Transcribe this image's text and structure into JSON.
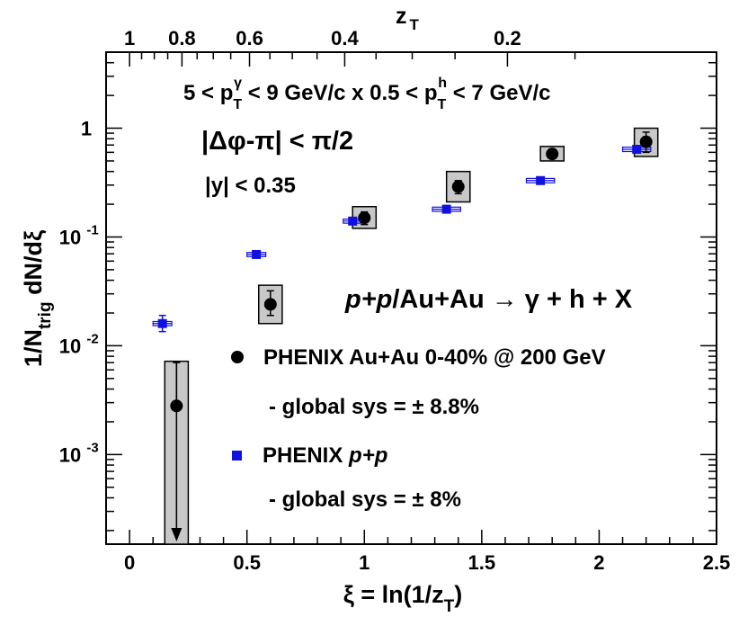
{
  "chart_data": {
    "type": "scatter",
    "title": "",
    "xlabel": "ξ = ln(1/z",
    "xlabel_sub": "T",
    "xlabel_tail": ")",
    "ylabel": "1/N",
    "ylabel_sub": "trig",
    "ylabel_tail": " dN/dξ",
    "x2label": "z",
    "x2label_sub": "T",
    "xlim": [
      -0.1,
      2.5
    ],
    "ylim": [
      0.00015,
      5
    ],
    "yscale": "log",
    "grid": false,
    "xticks": [
      {
        "value": 0,
        "label": "0"
      },
      {
        "value": 0.5,
        "label": "0.5"
      },
      {
        "value": 1,
        "label": "1"
      },
      {
        "value": 1.5,
        "label": "1.5"
      },
      {
        "value": 2,
        "label": "2"
      },
      {
        "value": 2.5,
        "label": "2.5"
      }
    ],
    "yticks": [
      {
        "value": 0.001,
        "label": "10",
        "exp": "-3"
      },
      {
        "value": 0.01,
        "label": "10",
        "exp": "-2"
      },
      {
        "value": 0.1,
        "label": "10",
        "exp": "-1"
      },
      {
        "value": 1,
        "label": "1",
        "exp": ""
      }
    ],
    "x2ticks": [
      {
        "value": 1,
        "label": "1"
      },
      {
        "value": 0.8,
        "label": "0.8"
      },
      {
        "value": 0.6,
        "label": "0.6"
      },
      {
        "value": 0.4,
        "label": "0.4"
      },
      {
        "value": 0.2,
        "label": "0.2"
      }
    ],
    "annotations": {
      "kinematics": "5 < pᵀ^γ < 9 GeV/c x 0.5 < pᵀ^h < 7 GeV/c",
      "kin_a": "5 < p",
      "kin_a_sub": "T",
      "kin_a_sup": "γ",
      "kin_b": " < 9 GeV/c x 0.5 < p",
      "kin_b_sub": "T",
      "kin_b_sup": "h",
      "kin_c": " < 7 GeV/c",
      "dphi": "|Δφ-π| < π/2",
      "rapidity": "|y| < 0.35",
      "reaction": "p+p/Au+Au → γ + h + X",
      "reaction_a": "p+p",
      "reaction_b": "/Au+Au → γ + h + X"
    },
    "series": [
      {
        "name": "PHENIX Au+Au 0-40% @ 200 GeV",
        "sys_note": "- global sys = ± 8.8%",
        "color": "#000000",
        "marker": "circle",
        "points": [
          {
            "x": 0.2,
            "y": 0.0028,
            "stat": [
              0.0028,
              0.007
            ],
            "sys": [
              0.00015,
              0.0072
            ],
            "sys_half_width": 0.05,
            "upper_limit": true
          },
          {
            "x": 0.6,
            "y": 0.024,
            "stat": [
              0.019,
              0.032
            ],
            "sys": [
              0.016,
              0.036
            ],
            "sys_half_width": 0.05
          },
          {
            "x": 1.0,
            "y": 0.15,
            "stat": [
              0.13,
              0.17
            ],
            "sys": [
              0.12,
              0.19
            ],
            "sys_half_width": 0.05
          },
          {
            "x": 1.4,
            "y": 0.29,
            "stat": [
              0.25,
              0.33
            ],
            "sys": [
              0.21,
              0.4
            ],
            "sys_half_width": 0.05
          },
          {
            "x": 1.8,
            "y": 0.58,
            "stat": [
              0.54,
              0.63
            ],
            "sys": [
              0.5,
              0.68
            ],
            "sys_half_width": 0.05
          },
          {
            "x": 2.2,
            "y": 0.75,
            "stat": [
              0.6,
              0.92
            ],
            "sys": [
              0.55,
              1.0
            ],
            "sys_half_width": 0.05
          }
        ]
      },
      {
        "name": "PHENIX p+p",
        "name_a": "PHENIX ",
        "name_b": "p+p",
        "sys_note": "- global sys = ± 8%",
        "color": "#1010e0",
        "marker": "square",
        "points": [
          {
            "x": 0.14,
            "y": 0.016,
            "stat": [
              0.0135,
              0.019
            ],
            "sys": [
              0.0153,
              0.0167
            ],
            "sys_half_width": 0.04
          },
          {
            "x": 0.54,
            "y": 0.069,
            "stat": [
              0.066,
              0.072
            ],
            "sys": [
              0.066,
              0.072
            ],
            "sys_half_width": 0.04
          },
          {
            "x": 0.95,
            "y": 0.14,
            "stat": [
              0.135,
              0.145
            ],
            "sys": [
              0.134,
              0.146
            ],
            "sys_half_width": 0.04
          },
          {
            "x": 1.35,
            "y": 0.18,
            "stat": [
              0.175,
              0.186
            ],
            "sys": [
              0.172,
              0.188
            ],
            "sys_half_width": 0.06
          },
          {
            "x": 1.75,
            "y": 0.33,
            "stat": [
              0.32,
              0.34
            ],
            "sys": [
              0.315,
              0.345
            ],
            "sys_half_width": 0.06
          },
          {
            "x": 2.16,
            "y": 0.64,
            "stat": [
              0.62,
              0.66
            ],
            "sys": [
              0.61,
              0.67
            ],
            "sys_half_width": 0.06
          }
        ]
      }
    ]
  }
}
